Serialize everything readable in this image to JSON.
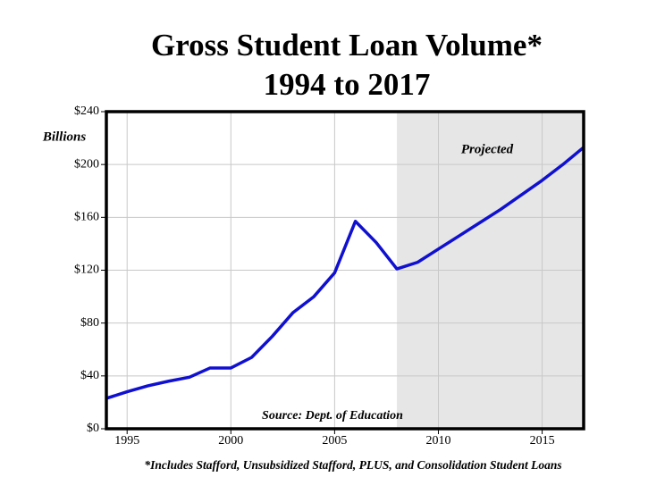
{
  "chart_data": {
    "type": "line",
    "title": [
      "Gross Student Loan Volume*",
      "1994 to 2017"
    ],
    "y_unit_label": "Billions",
    "source": "Source: Dept. of Education",
    "footnote": "*Includes Stafford, Unsubsidized Stafford, PLUS, and Consolidation Student Loans",
    "shaded_region": {
      "label": "Projected",
      "xlim": [
        2008,
        2017
      ]
    },
    "x": [
      1994,
      1995,
      1996,
      1997,
      1998,
      1999,
      2000,
      2001,
      2002,
      2003,
      2004,
      2005,
      2006,
      2007,
      2008,
      2009,
      2010,
      2011,
      2012,
      2013,
      2014,
      2015,
      2016,
      2017
    ],
    "series": [
      {
        "name": "Gross Student Loan Volume",
        "color": "#1010d0",
        "values": [
          23,
          28,
          32.5,
          36,
          39,
          46,
          46,
          54,
          70,
          88,
          100,
          118,
          157,
          141,
          121,
          126,
          136,
          146,
          156,
          166,
          177,
          188,
          200,
          213
        ]
      }
    ],
    "xlim": [
      1994,
      2017
    ],
    "xticks": [
      1995,
      2000,
      2005,
      2010,
      2015
    ],
    "ylim": [
      0,
      240
    ],
    "yticks": [
      {
        "value": 0,
        "label": "$0"
      },
      {
        "value": 40,
        "label": "$40"
      },
      {
        "value": 80,
        "label": "$80"
      },
      {
        "value": 120,
        "label": "$120"
      },
      {
        "value": 160,
        "label": "$160"
      },
      {
        "value": 200,
        "label": "$200"
      },
      {
        "value": 240,
        "label": "$240"
      }
    ],
    "grid": true
  }
}
